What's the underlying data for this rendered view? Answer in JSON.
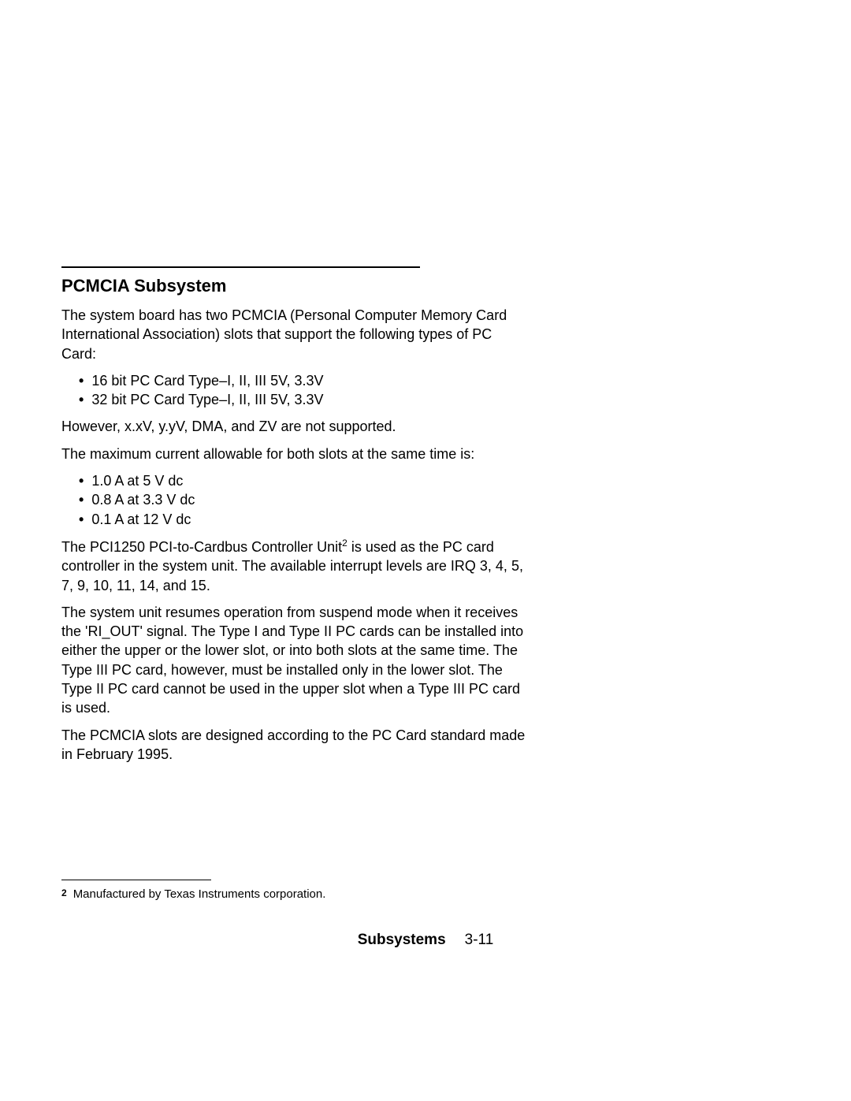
{
  "section": {
    "title": "PCMCIA Subsystem",
    "intro": "The system board has two PCMCIA (Personal Computer Memory Card International Association) slots that support the following types of PC Card:",
    "card_types": [
      "16 bit PC Card Type–I, II, III 5V, 3.3V",
      "32 bit PC Card Type–I, II, III 5V, 3.3V"
    ],
    "unsupported": "However, x.xV, y.yV, DMA, and ZV are not supported.",
    "max_current_intro": "The maximum current allowable for both slots at the same time is:",
    "max_current": [
      "1.0 A at 5 V dc",
      "0.8 A at 3.3 V dc",
      "0.1 A at 12 V dc"
    ],
    "controller_pre": "The PCI1250 PCI-to-Cardbus Controller Unit",
    "controller_sup": "2",
    "controller_post": " is used as the PC card controller in the system unit.  The available interrupt levels are IRQ 3, 4, 5, 7, 9, 10, 11, 14, and 15.",
    "resume": "The system unit resumes operation from suspend mode when it receives the 'RI_OUT' signal.  The Type I and Type II PC cards can be installed into either the upper or the lower slot, or into both slots at the same time.  The Type III PC card, however, must be installed only in the lower slot.  The Type II PC card cannot be used in the upper slot when a Type III PC card is used.",
    "standard": "The PCMCIA slots are designed according to the PC Card standard made in February 1995."
  },
  "footnote": {
    "num": "2",
    "text": "Manufactured by Texas Instruments corporation."
  },
  "footer": {
    "label": "Subsystems",
    "page": "3-11"
  }
}
